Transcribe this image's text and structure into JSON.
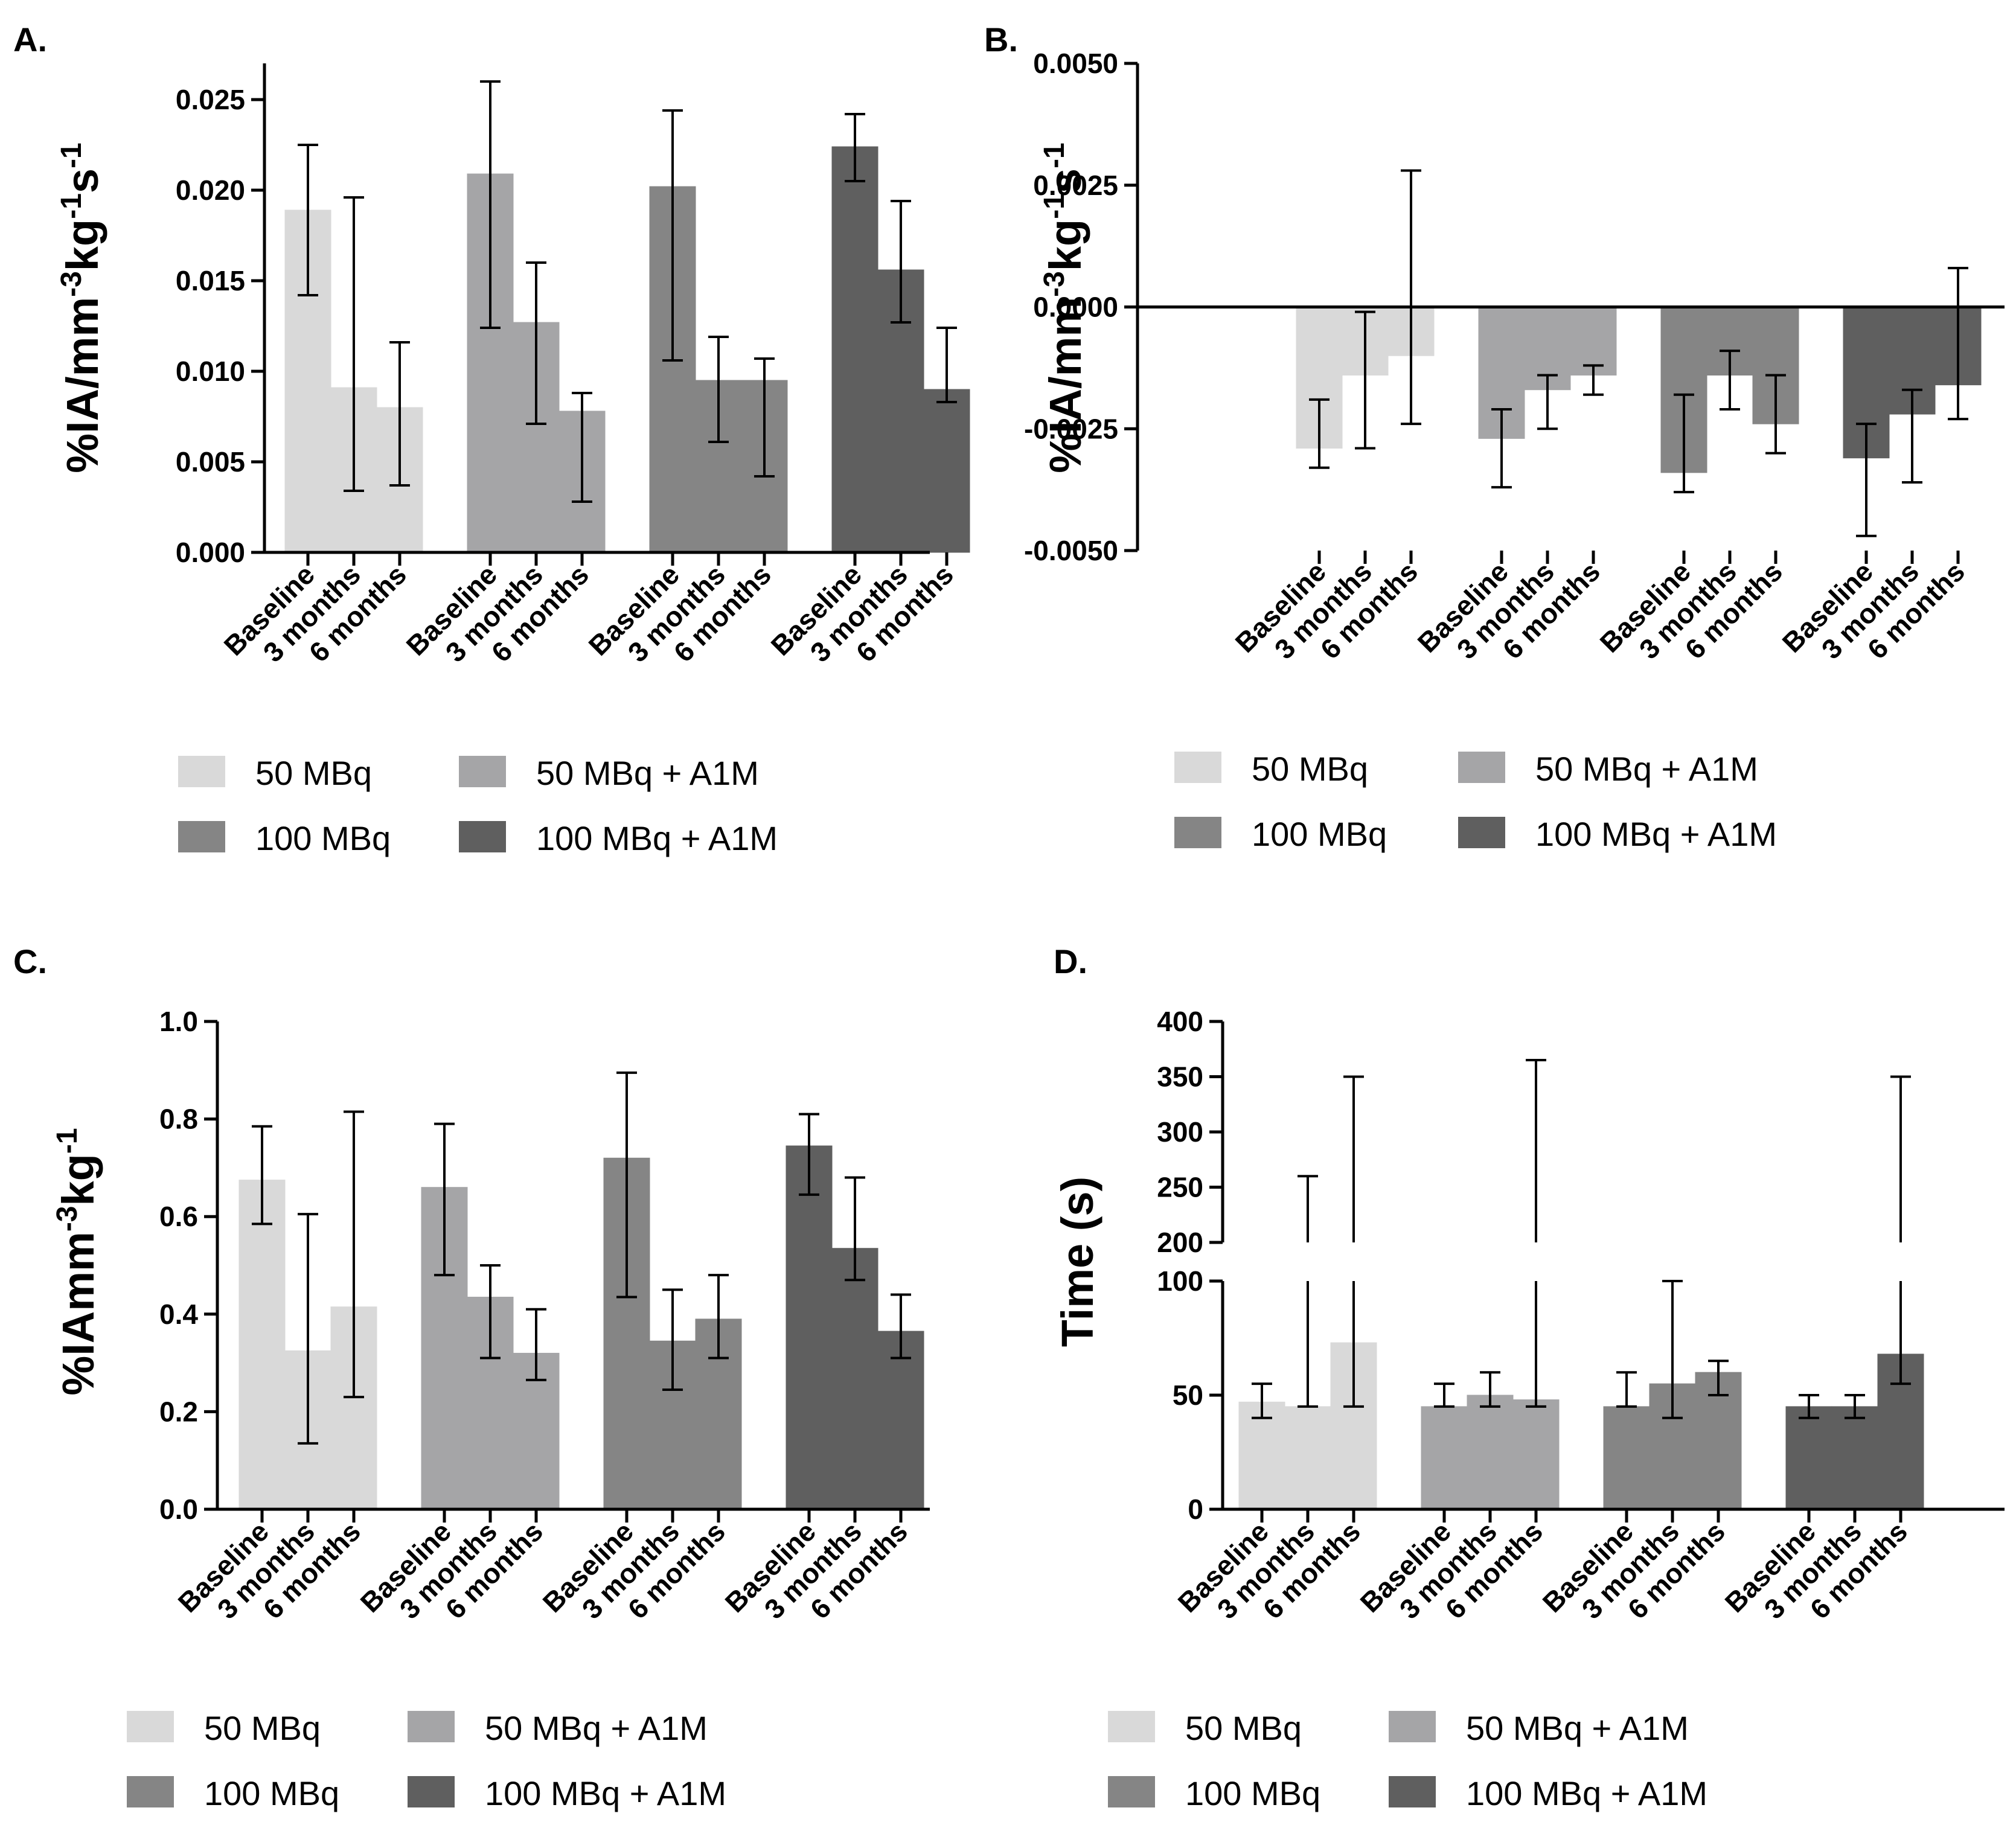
{
  "colors": {
    "50 MBq": "#d9d9d9",
    "50 MBq + A1M": "#a5a5a7",
    "100 MBq": "#858585",
    "100 MBq + A1M": "#5f5f5f"
  },
  "chart_data": [
    {
      "panel": "A.",
      "type": "bar",
      "ylabel": {
        "base": "%IA/mm",
        "parts": [
          [
            "%IA/mm",
            ""
          ],
          [
            "-3",
            "sup"
          ],
          [
            "kg",
            ""
          ],
          [
            "-1",
            "sup"
          ],
          [
            "s",
            ""
          ],
          [
            "-1",
            "sup"
          ]
        ]
      },
      "ylim": [
        0,
        0.027
      ],
      "yticks": [
        "0.000",
        "0.005",
        "0.010",
        "0.015",
        "0.020",
        "0.025"
      ],
      "ytick_values": [
        0,
        0.005,
        0.01,
        0.015,
        0.02,
        0.025
      ],
      "timepoints": [
        "Baseline",
        "3 months",
        "6 months"
      ],
      "series": [
        {
          "name": "50 MBq",
          "values": [
            0.0189,
            0.0091,
            0.008
          ],
          "err_low": [
            0.0142,
            0.0034,
            0.0037
          ],
          "err_high": [
            0.0225,
            0.0196,
            0.0116
          ]
        },
        {
          "name": "50 MBq + A1M",
          "values": [
            0.0209,
            0.0127,
            0.0078
          ],
          "err_low": [
            0.0124,
            0.0071,
            0.0028
          ],
          "err_high": [
            0.026,
            0.016,
            0.0088
          ]
        },
        {
          "name": "100 MBq",
          "values": [
            0.0202,
            0.0095,
            0.0095
          ],
          "err_low": [
            0.0106,
            0.0061,
            0.0042
          ],
          "err_high": [
            0.0244,
            0.0119,
            0.0107
          ]
        },
        {
          "name": "100 MBq + A1M",
          "values": [
            0.0224,
            0.0156,
            0.009
          ],
          "err_low": [
            0.0205,
            0.0127,
            0.0083
          ],
          "err_high": [
            0.0242,
            0.0194,
            0.0124
          ]
        }
      ],
      "legend": [
        "50 MBq",
        "50 MBq + A1M",
        "100 MBq",
        "100 MBq + A1M"
      ]
    },
    {
      "panel": "B.",
      "type": "bar",
      "ylabel": {
        "base": "%IA/mm",
        "parts": [
          [
            "%IA/mm",
            ""
          ],
          [
            "-3",
            "sup"
          ],
          [
            "kg",
            ""
          ],
          [
            "-1",
            "sup"
          ],
          [
            "s",
            ""
          ],
          [
            "-1",
            "sup"
          ]
        ]
      },
      "ylim": [
        -0.005,
        0.005
      ],
      "yticks": [
        "-0.0050",
        "-0.0025",
        "0.0000",
        "0.0025",
        "0.0050"
      ],
      "ytick_values": [
        -0.005,
        -0.0025,
        0,
        0.0025,
        0.005
      ],
      "timepoints": [
        "Baseline",
        "3 months",
        "6 months"
      ],
      "series": [
        {
          "name": "50 MBq",
          "values": [
            -0.0029,
            -0.0014,
            -0.001
          ],
          "err_low": [
            -0.0033,
            -0.0029,
            -0.0024
          ],
          "err_high": [
            -0.0019,
            -0.0001,
            0.0028
          ]
        },
        {
          "name": "50 MBq + A1M",
          "values": [
            -0.0027,
            -0.0017,
            -0.0014
          ],
          "err_low": [
            -0.0037,
            -0.0025,
            -0.0018
          ],
          "err_high": [
            -0.0021,
            -0.0014,
            -0.0012
          ]
        },
        {
          "name": "100 MBq",
          "values": [
            -0.0034,
            -0.0014,
            -0.0024
          ],
          "err_low": [
            -0.0038,
            -0.0021,
            -0.003
          ],
          "err_high": [
            -0.0018,
            -0.0009,
            -0.0014
          ]
        },
        {
          "name": "100 MBq + A1M",
          "values": [
            -0.0031,
            -0.0022,
            -0.0016
          ],
          "err_low": [
            -0.0047,
            -0.0036,
            -0.0023
          ],
          "err_high": [
            -0.0024,
            -0.0017,
            0.0008
          ]
        }
      ],
      "legend": [
        "50 MBq",
        "50 MBq + A1M",
        "100 MBq",
        "100 MBq + A1M"
      ]
    },
    {
      "panel": "C.",
      "type": "bar",
      "ylabel": {
        "base": "%IAmm",
        "parts": [
          [
            "%IAmm",
            ""
          ],
          [
            "-3",
            "sup"
          ],
          [
            "kg",
            ""
          ],
          [
            "-1",
            "sup"
          ]
        ]
      },
      "ylim": [
        0,
        1.0
      ],
      "yticks": [
        "0.0",
        "0.2",
        "0.4",
        "0.6",
        "0.8",
        "1.0"
      ],
      "ytick_values": [
        0,
        0.2,
        0.4,
        0.6,
        0.8,
        1.0
      ],
      "timepoints": [
        "Baseline",
        "3 months",
        "6 months"
      ],
      "series": [
        {
          "name": "50 MBq",
          "values": [
            0.675,
            0.325,
            0.415
          ],
          "err_low": [
            0.585,
            0.135,
            0.23
          ],
          "err_high": [
            0.785,
            0.605,
            0.815
          ]
        },
        {
          "name": "50 MBq + A1M",
          "values": [
            0.66,
            0.435,
            0.32
          ],
          "err_low": [
            0.48,
            0.31,
            0.265
          ],
          "err_high": [
            0.79,
            0.5,
            0.41
          ]
        },
        {
          "name": "100 MBq",
          "values": [
            0.72,
            0.345,
            0.39
          ],
          "err_low": [
            0.435,
            0.245,
            0.31
          ],
          "err_high": [
            0.895,
            0.45,
            0.48
          ]
        },
        {
          "name": "100 MBq + A1M",
          "values": [
            0.745,
            0.535,
            0.365
          ],
          "err_low": [
            0.645,
            0.47,
            0.31
          ],
          "err_high": [
            0.81,
            0.68,
            0.44
          ]
        }
      ],
      "legend": [
        "50 MBq",
        "50 MBq + A1M",
        "100 MBq",
        "100 MBq + A1M"
      ]
    },
    {
      "panel": "D.",
      "type": "bar",
      "broken_axis": true,
      "ylabel": {
        "base": "Time (s)",
        "parts": [
          [
            "Time (s)",
            ""
          ]
        ]
      },
      "ylim_lower": [
        0,
        100
      ],
      "ylim_upper": [
        200,
        400
      ],
      "yticks": [
        "0",
        "50",
        "100",
        "200",
        "250",
        "300",
        "350",
        "400"
      ],
      "ytick_values": [
        0,
        50,
        100,
        200,
        250,
        300,
        350,
        400
      ],
      "timepoints": [
        "Baseline",
        "3 months",
        "6 months"
      ],
      "series": [
        {
          "name": "50 MBq",
          "values": [
            47,
            45,
            73
          ],
          "err_low": [
            40,
            45,
            45
          ],
          "err_high": [
            55,
            260,
            350
          ]
        },
        {
          "name": "50 MBq + A1M",
          "values": [
            45,
            50,
            48
          ],
          "err_low": [
            45,
            45,
            45
          ],
          "err_high": [
            55,
            60,
            365
          ]
        },
        {
          "name": "100 MBq",
          "values": [
            45,
            55,
            60
          ],
          "err_low": [
            45,
            40,
            50
          ],
          "err_high": [
            60,
            100,
            65
          ]
        },
        {
          "name": "100 MBq + A1M",
          "values": [
            45,
            45,
            68
          ],
          "err_low": [
            40,
            40,
            55
          ],
          "err_high": [
            50,
            50,
            350
          ]
        }
      ],
      "legend": [
        "50 MBq",
        "50 MBq + A1M",
        "100 MBq",
        "100 MBq + A1M"
      ]
    }
  ]
}
